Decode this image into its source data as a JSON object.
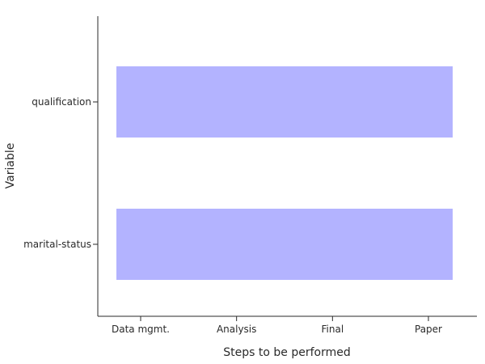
{
  "chart_data": {
    "type": "bar",
    "orientation": "horizontal",
    "bar_color": "#b3b3ff",
    "xlabel": "Steps to be performed",
    "ylabel": "Variable",
    "x_categories": [
      "Data mgmt.",
      "Analysis",
      "Final",
      "Paper"
    ],
    "y_categories": [
      "qualification",
      "marital-status"
    ],
    "bars": [
      {
        "category": "qualification",
        "start": "Data mgmt.",
        "end": "Paper"
      },
      {
        "category": "marital-status",
        "start": "Data mgmt.",
        "end": "Paper"
      }
    ]
  }
}
